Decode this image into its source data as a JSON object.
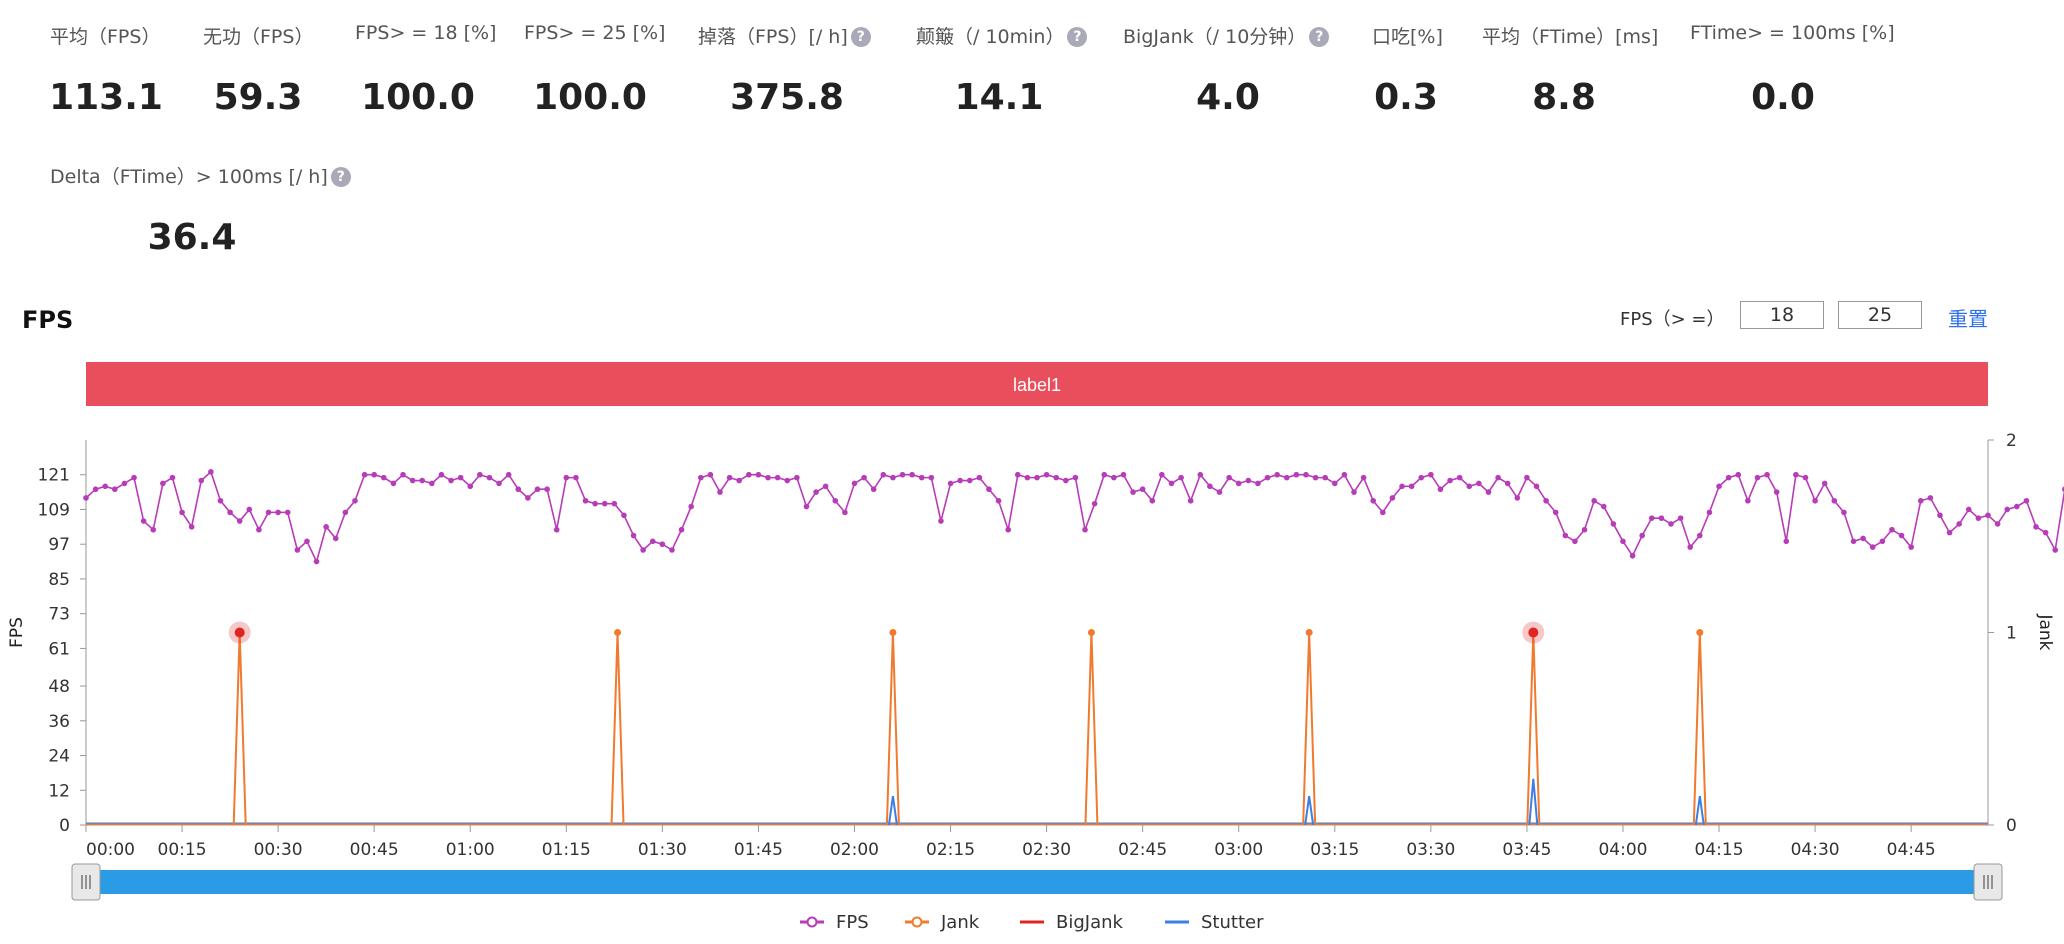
{
  "metrics": [
    {
      "label": "平均（FPS）",
      "value": "113.1",
      "help": false
    },
    {
      "label": "无功（FPS）",
      "value": "59.3",
      "help": false
    },
    {
      "label": "FPS> = 18 [%]",
      "value": "100.0",
      "help": false
    },
    {
      "label": "FPS> = 25 [%]",
      "value": "100.0",
      "help": false
    },
    {
      "label": "掉落（FPS）[/ h]",
      "value": "375.8",
      "help": true
    },
    {
      "label": "颠簸（/ 10min）",
      "value": "14.1",
      "help": true
    },
    {
      "label": "BigJank（/ 10分钟）",
      "value": "4.0",
      "help": true
    },
    {
      "label": "口吃[%]",
      "value": "0.3",
      "help": false
    },
    {
      "label": "平均（FTime）[ms]",
      "value": "8.8",
      "help": false
    },
    {
      "label": "FTime> = 100ms [%]",
      "value": "0.0",
      "help": false
    },
    {
      "label": "Delta（FTime）> 100ms [/ h]",
      "value": "36.4",
      "help": true
    }
  ],
  "help_icon": "question-circle-icon",
  "section_title": "FPS",
  "threshold": {
    "label": "FPS（> =）",
    "value1": "18",
    "value2": "25",
    "reset_label": "重置"
  },
  "chart_data": {
    "type": "line",
    "label_bar": "label1",
    "ylabel": "FPS",
    "y2label": "Jank",
    "yticks": [
      0,
      12,
      24,
      36,
      48,
      61,
      73,
      85,
      97,
      109,
      121
    ],
    "ylim": [
      0,
      133
    ],
    "y2ticks": [
      0,
      1,
      2
    ],
    "y2lim": [
      0,
      2
    ],
    "xticks": [
      "00:00",
      "00:15",
      "00:30",
      "00:45",
      "01:00",
      "01:15",
      "01:30",
      "01:45",
      "02:00",
      "02:15",
      "02:30",
      "02:45",
      "03:00",
      "03:15",
      "03:30",
      "03:45",
      "04:00",
      "04:15",
      "04:30",
      "04:45"
    ],
    "xrange_seconds": [
      0,
      297
    ],
    "legend_position": "bottom",
    "colors": {
      "FPS": "#b83bb8",
      "Jank": "#f07a2e",
      "BigJank": "#e02424",
      "Stutter": "#3d7ee6",
      "label_bar": "#e84e5b",
      "slider": "#2b9be6"
    },
    "series": [
      {
        "name": "FPS",
        "type": "line-marker",
        "x_seconds_step": 1.5,
        "values": [
          113,
          116,
          117,
          116,
          118,
          120,
          105,
          102,
          118,
          120,
          108,
          103,
          119,
          122,
          112,
          108,
          105,
          109,
          102,
          108,
          108,
          108,
          95,
          98,
          91,
          103,
          99,
          108,
          112,
          121,
          121,
          120,
          118,
          121,
          119,
          119,
          118,
          121,
          119,
          120,
          117,
          121,
          120,
          118,
          121,
          116,
          113,
          116,
          116,
          102,
          120,
          120,
          112,
          111,
          111,
          111,
          107,
          100,
          95,
          98,
          97,
          95,
          102,
          110,
          120,
          121,
          115,
          120,
          119,
          121,
          121,
          120,
          120,
          119,
          120,
          110,
          115,
          117,
          112,
          108,
          118,
          120,
          116,
          121,
          120,
          121,
          121,
          120,
          120,
          105,
          118,
          119,
          119,
          120,
          116,
          112,
          102,
          121,
          120,
          120,
          121,
          120,
          119,
          120,
          102,
          111,
          121,
          120,
          121,
          115,
          116,
          112,
          121,
          118,
          120,
          112,
          121,
          117,
          115,
          120,
          118,
          119,
          118,
          120,
          121,
          120,
          121,
          121,
          120,
          120,
          118,
          121,
          115,
          120,
          112,
          108,
          113,
          117,
          117,
          120,
          121,
          116,
          119,
          120,
          117,
          118,
          115,
          120,
          118,
          113,
          120,
          117,
          112,
          108,
          100,
          98,
          102,
          112,
          110,
          104,
          98,
          93,
          100,
          106,
          106,
          104,
          106,
          96,
          100,
          108,
          117,
          120,
          121,
          112,
          120,
          121,
          115,
          98,
          121,
          120,
          112,
          118,
          112,
          108,
          98,
          99,
          96,
          98,
          102,
          100,
          96,
          112,
          113,
          107,
          101,
          104,
          109,
          106,
          107,
          104,
          109,
          110,
          112,
          103,
          101,
          95,
          116,
          112,
          105,
          116,
          120,
          108,
          115,
          120,
          105,
          105,
          112,
          112,
          112,
          108,
          108,
          113,
          102,
          112,
          110,
          104,
          98,
          104,
          109,
          107,
          105,
          101,
          103,
          100,
          107,
          105,
          105,
          100,
          100,
          99,
          94,
          90,
          99,
          112,
          106,
          106,
          105,
          110,
          102,
          101,
          98,
          96,
          90,
          100,
          108,
          116,
          120,
          116,
          105,
          117,
          100,
          98,
          105,
          112,
          108,
          103,
          106,
          98,
          96,
          120,
          114,
          102,
          100,
          107,
          112,
          102,
          118,
          117,
          110,
          107,
          111,
          119,
          116,
          112,
          118,
          117,
          110,
          105,
          98,
          96,
          107,
          120,
          103,
          94,
          100,
          112,
          106,
          95,
          98,
          95,
          96,
          115,
          108,
          100,
          105,
          116,
          112,
          110,
          115,
          115,
          120,
          121,
          121,
          120,
          120,
          121,
          117,
          121,
          121,
          120,
          121,
          118,
          120,
          120,
          119,
          118,
          121,
          120,
          121,
          120,
          120,
          118,
          120,
          119,
          117,
          116,
          121,
          118,
          121,
          119,
          120,
          121,
          120,
          121,
          117,
          120,
          121,
          120,
          121,
          118,
          117
        ]
      },
      {
        "name": "Jank",
        "type": "spikes",
        "values_at": [
          24,
          83,
          126,
          157,
          191,
          226,
          252
        ],
        "peak": 1
      },
      {
        "name": "BigJank",
        "type": "markers",
        "values_at": [
          24,
          226
        ],
        "peak": 1
      },
      {
        "name": "Stutter",
        "type": "spikes",
        "values_at": [
          126,
          191,
          226,
          252
        ],
        "peaks": [
          0.15,
          0.15,
          0.24,
          0.15
        ]
      }
    ],
    "legend": [
      "FPS",
      "Jank",
      "BigJank",
      "Stutter"
    ],
    "slider_range": [
      0,
      1
    ]
  }
}
